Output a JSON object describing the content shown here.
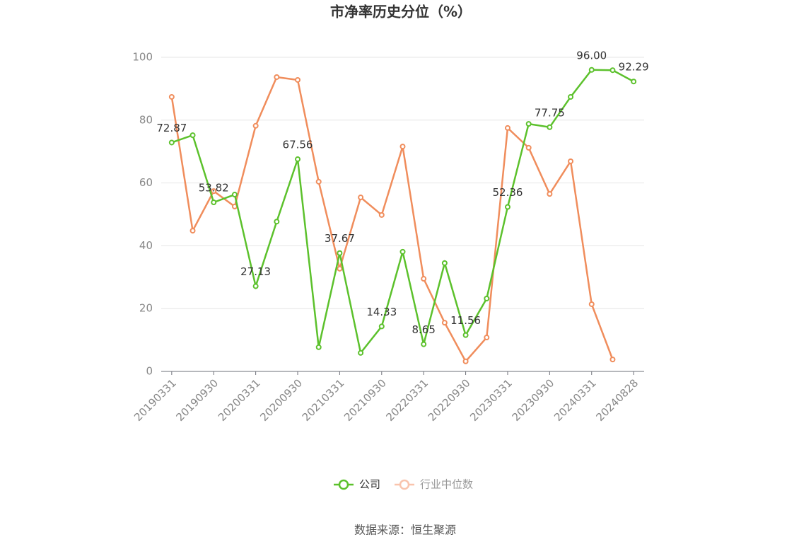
{
  "chart_data": {
    "type": "line",
    "title": "市净率历史分位（%）",
    "categories": [
      "20190331",
      null,
      "20190930",
      null,
      "20200331",
      null,
      "20200930",
      null,
      "20210331",
      null,
      "20210930",
      null,
      "20220331",
      null,
      "20220930",
      null,
      "20230331",
      null,
      "20230930",
      null,
      "20240331",
      null,
      "20240828"
    ],
    "series": [
      {
        "name": "公司",
        "color": "#5cc12c",
        "values": [
          72.87,
          75.2,
          53.82,
          56.3,
          27.13,
          47.7,
          67.56,
          7.7,
          37.67,
          5.9,
          14.33,
          38.1,
          8.65,
          34.5,
          11.56,
          23.2,
          52.36,
          78.8,
          77.75,
          87.4,
          96.0,
          95.9,
          92.29
        ],
        "value_labels": [
          "72.87",
          null,
          "53.82",
          null,
          "27.13",
          null,
          "67.56",
          null,
          "37.67",
          null,
          "14.33",
          null,
          "8.65",
          null,
          "11.56",
          null,
          "52.36",
          null,
          "77.75",
          null,
          "96.00",
          null,
          "92.29"
        ]
      },
      {
        "name": "行业中位数",
        "color": "#f08d5c",
        "values": [
          87.4,
          44.8,
          57.4,
          52.5,
          78.2,
          93.7,
          92.8,
          60.4,
          32.7,
          55.4,
          49.8,
          71.6,
          29.5,
          15.5,
          3.2,
          10.8,
          77.5,
          71.2,
          56.5,
          66.9,
          21.4,
          3.8,
          null
        ]
      }
    ],
    "ylim": [
      0,
      100
    ],
    "yticks": [
      0,
      20,
      40,
      60,
      80,
      100
    ],
    "grid": true,
    "source": "数据来源：恒生聚源"
  }
}
